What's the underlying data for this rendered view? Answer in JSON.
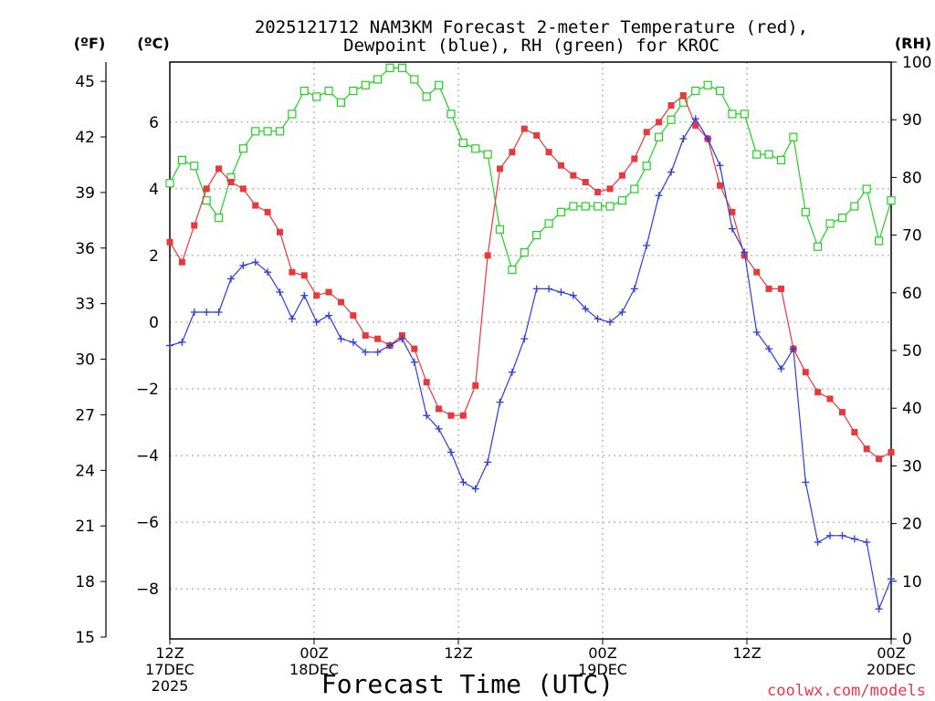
{
  "chart_data": {
    "type": "line",
    "title_line1": "2025121712 NAM3KM Forecast 2-meter Temperature (red),",
    "title_line2": "Dewpoint (blue), RH (green) for KROC",
    "xlabel": "Forecast Time (UTC)",
    "credit": "coolwx.com/models",
    "left_outer_unit": "(ºF)",
    "left_inner_unit": "(ºC)",
    "right_unit": "(RH)",
    "x_range": [
      0,
      60
    ],
    "x_ticks": [
      {
        "x": 0,
        "lines": [
          "12Z",
          "17DEC",
          "2025"
        ]
      },
      {
        "x": 12,
        "lines": [
          "00Z",
          "18DEC"
        ]
      },
      {
        "x": 24,
        "lines": [
          "12Z"
        ]
      },
      {
        "x": 36,
        "lines": [
          "00Z",
          "19DEC"
        ]
      },
      {
        "x": 48,
        "lines": [
          "12Z"
        ]
      },
      {
        "x": 60,
        "lines": [
          "00Z",
          "20DEC"
        ]
      }
    ],
    "celsius_range": [
      -9.5,
      7.8
    ],
    "celsius_ticks": [
      {
        "v": -8,
        "label": "−8"
      },
      {
        "v": -6,
        "label": "−6"
      },
      {
        "v": -4,
        "label": "−4"
      },
      {
        "v": -2,
        "label": "−2"
      },
      {
        "v": 0,
        "label": "0"
      },
      {
        "v": 2,
        "label": "2"
      },
      {
        "v": 4,
        "label": "4"
      },
      {
        "v": 6,
        "label": "6"
      }
    ],
    "fahrenheit_ticks": [
      {
        "v": 15,
        "label": "15"
      },
      {
        "v": 18,
        "label": "18"
      },
      {
        "v": 21,
        "label": "21"
      },
      {
        "v": 24,
        "label": "24"
      },
      {
        "v": 27,
        "label": "27"
      },
      {
        "v": 30,
        "label": "30"
      },
      {
        "v": 33,
        "label": "33"
      },
      {
        "v": 36,
        "label": "36"
      },
      {
        "v": 39,
        "label": "39"
      },
      {
        "v": 42,
        "label": "42"
      },
      {
        "v": 45,
        "label": "45"
      }
    ],
    "rh_range": [
      0,
      100
    ],
    "rh_ticks": [
      {
        "v": 0,
        "label": "0"
      },
      {
        "v": 10,
        "label": "10"
      },
      {
        "v": 20,
        "label": "20"
      },
      {
        "v": 30,
        "label": "30"
      },
      {
        "v": 40,
        "label": "40"
      },
      {
        "v": 50,
        "label": "50"
      },
      {
        "v": 60,
        "label": "60"
      },
      {
        "v": 70,
        "label": "70"
      },
      {
        "v": 80,
        "label": "80"
      },
      {
        "v": 90,
        "label": "90"
      },
      {
        "v": 100,
        "label": "100"
      }
    ],
    "series": [
      {
        "name": "2-meter Temperature",
        "unit": "C",
        "color": "#e8383c",
        "marker": "filled-square",
        "values": [
          2.4,
          1.8,
          2.9,
          4.0,
          4.6,
          4.2,
          4.0,
          3.5,
          3.3,
          2.7,
          1.5,
          1.4,
          0.8,
          0.9,
          0.6,
          0.2,
          -0.4,
          -0.5,
          -0.7,
          -0.4,
          -0.8,
          -1.8,
          -2.6,
          -2.8,
          -2.8,
          -1.9,
          2.0,
          4.6,
          5.1,
          5.8,
          5.6,
          5.1,
          4.7,
          4.4,
          4.2,
          3.9,
          4.0,
          4.4,
          4.9,
          5.7,
          6.0,
          6.5,
          6.8,
          5.9,
          5.5,
          4.1,
          3.3,
          2.0,
          1.5,
          1.0,
          1.0,
          -0.8,
          -1.5,
          -2.1,
          -2.3,
          -2.7,
          -3.3,
          -3.8,
          -4.1,
          -3.9
        ]
      },
      {
        "name": "Dewpoint",
        "unit": "C",
        "color": "#2c3cdc",
        "marker": "plus",
        "values": [
          -0.7,
          -0.6,
          0.3,
          0.3,
          0.3,
          1.3,
          1.7,
          1.8,
          1.5,
          0.9,
          0.1,
          0.8,
          0.0,
          0.2,
          -0.5,
          -0.6,
          -0.9,
          -0.9,
          -0.7,
          -0.5,
          -1.2,
          -2.8,
          -3.2,
          -3.9,
          -4.8,
          -5.0,
          -4.2,
          -2.4,
          -1.5,
          -0.5,
          1.0,
          1.0,
          0.9,
          0.8,
          0.4,
          0.1,
          0.0,
          0.3,
          1.0,
          2.3,
          3.8,
          4.5,
          5.5,
          6.1,
          5.5,
          4.7,
          2.8,
          2.1,
          -0.3,
          -0.8,
          -1.4,
          -0.8,
          -4.8,
          -6.6,
          -6.4,
          -6.4,
          -6.5,
          -6.6,
          -8.6,
          -7.7
        ]
      },
      {
        "name": "RH",
        "unit": "%",
        "color": "#21d021",
        "marker": "open-square",
        "values": [
          79,
          83,
          82,
          76,
          73,
          80,
          85,
          88,
          88,
          88,
          91,
          95,
          94,
          95,
          93,
          95,
          96,
          97,
          99,
          99,
          97,
          94,
          96,
          91,
          86,
          85,
          84,
          71,
          64,
          67,
          70,
          72,
          74,
          75,
          75,
          75,
          75,
          76,
          78,
          82,
          87,
          90,
          93,
          95,
          96,
          95,
          91,
          91,
          84,
          84,
          83,
          87,
          74,
          68,
          72,
          73,
          75,
          78,
          69,
          76
        ]
      }
    ]
  }
}
